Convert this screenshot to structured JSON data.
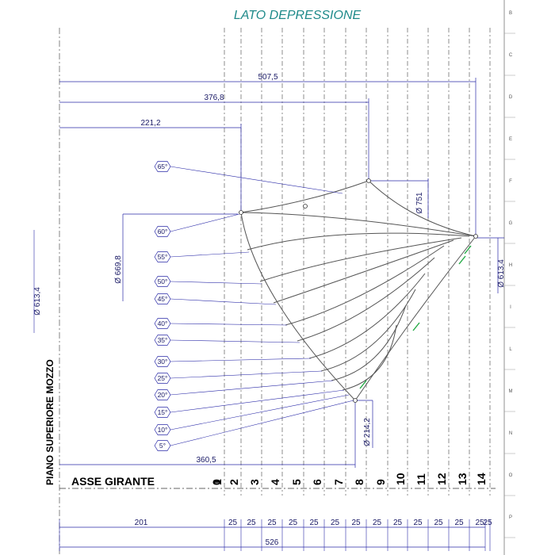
{
  "title": "LATO DEPRESSIONE",
  "axis_label": "ASSE GIRANTE",
  "hub_label": "PIANO SUPERIORE MOZZO",
  "station_numbers": [
    "0",
    "1",
    "2",
    "3",
    "4",
    "5",
    "6",
    "7",
    "8",
    "9",
    "10",
    "11",
    "12",
    "13",
    "14"
  ],
  "top_dimensions": [
    "507,5",
    "376,8",
    "221,2"
  ],
  "bottom_dimension": "360,5",
  "spacing_dimension": "25",
  "left_offset_dimension": "201",
  "total_dimension": "526",
  "diameters": {
    "left": "Ø 669,8",
    "top": "Ø 751",
    "right": "Ø 613,4",
    "bottom": "Ø 214,2",
    "far_left": "Ø 613,4"
  },
  "angle_labels": [
    "65°",
    "60°",
    "55°",
    "50°",
    "45°",
    "40°",
    "35°",
    "30°",
    "25°",
    "20°",
    "15°",
    "10°",
    "5°"
  ],
  "edge_letters": [
    "B",
    "C",
    "D",
    "E",
    "F",
    "G",
    "H",
    "I",
    "L",
    "M",
    "N",
    "O",
    "P"
  ],
  "colors": {
    "dimension": "#2a2aa8",
    "curves": "#555555",
    "title": "#1f8a8a",
    "green_marks": "#22aa44"
  }
}
